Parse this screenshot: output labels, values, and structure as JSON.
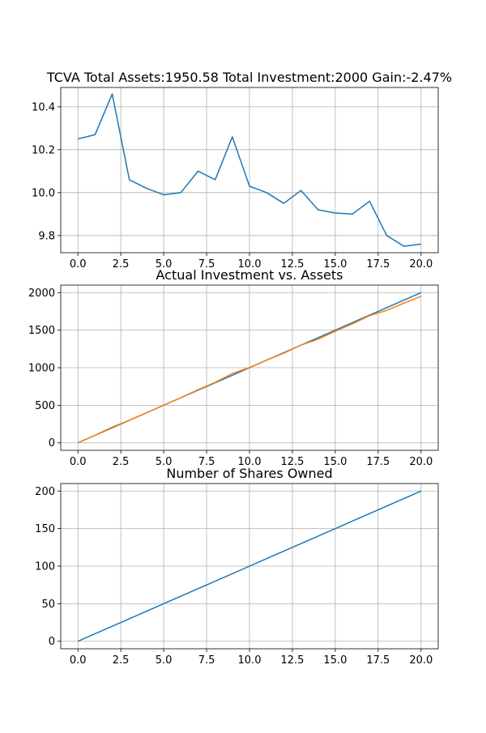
{
  "chart_data": [
    {
      "type": "line",
      "title": "TCVA Total Assets:1950.58  Total Investment:2000  Gain:-2.47%",
      "xlabel": "",
      "ylabel": "",
      "xlim": [
        -1,
        21
      ],
      "ylim": [
        9.72,
        10.49
      ],
      "grid": true,
      "x_ticks": [
        0,
        2.5,
        5,
        7.5,
        10,
        12.5,
        15,
        17.5,
        20
      ],
      "x_tick_labels": [
        "0.0",
        "2.5",
        "5.0",
        "7.5",
        "10.0",
        "12.5",
        "15.0",
        "17.5",
        "20.0"
      ],
      "y_ticks": [
        9.8,
        10.0,
        10.2,
        10.4
      ],
      "y_tick_labels": [
        "9.8",
        "10.0",
        "10.2",
        "10.4"
      ],
      "series": [
        {
          "color": "#1f77b4",
          "x": [
            0,
            1,
            2,
            3,
            4,
            5,
            6,
            7,
            8,
            9,
            10,
            11,
            12,
            13,
            14,
            15,
            16,
            17,
            18,
            19,
            20
          ],
          "y": [
            10.25,
            10.27,
            10.46,
            10.06,
            10.02,
            9.99,
            10.0,
            10.1,
            10.06,
            10.26,
            10.03,
            10.0,
            9.95,
            10.01,
            9.92,
            9.905,
            9.9,
            9.96,
            9.8,
            9.75,
            9.76
          ]
        }
      ]
    },
    {
      "type": "line",
      "title": "Actual Investment vs. Assets",
      "xlabel": "",
      "ylabel": "",
      "xlim": [
        -1,
        21
      ],
      "ylim": [
        -100,
        2100
      ],
      "grid": true,
      "x_ticks": [
        0,
        2.5,
        5,
        7.5,
        10,
        12.5,
        15,
        17.5,
        20
      ],
      "x_tick_labels": [
        "0.0",
        "2.5",
        "5.0",
        "7.5",
        "10.0",
        "12.5",
        "15.0",
        "17.5",
        "20.0"
      ],
      "y_ticks": [
        0,
        500,
        1000,
        1500,
        2000
      ],
      "y_tick_labels": [
        "0",
        "500",
        "1000",
        "1500",
        "2000"
      ],
      "series": [
        {
          "color": "#1f77b4",
          "x": [
            0,
            1,
            2,
            3,
            4,
            5,
            6,
            7,
            8,
            9,
            10,
            11,
            12,
            13,
            14,
            15,
            16,
            17,
            18,
            19,
            20
          ],
          "y": [
            0,
            100,
            200,
            300,
            400,
            500,
            600,
            700,
            800,
            900,
            1000,
            1100,
            1200,
            1300,
            1400,
            1500,
            1600,
            1700,
            1800,
            1900,
            2000
          ]
        },
        {
          "color": "#ff7f0e",
          "x": [
            0,
            1,
            2,
            3,
            4,
            5,
            6,
            7,
            8,
            9,
            10,
            11,
            12,
            13,
            14,
            15,
            16,
            17,
            18,
            19,
            20
          ],
          "y": [
            0,
            102,
            209,
            301,
            401,
            500,
            600,
            707,
            805,
            923,
            1003,
            1100,
            1194,
            1301,
            1379,
            1486,
            1584,
            1693,
            1764,
            1860,
            1950.58
          ]
        }
      ]
    },
    {
      "type": "line",
      "title": "Number of Shares Owned",
      "xlabel": "",
      "ylabel": "",
      "xlim": [
        -1,
        21
      ],
      "ylim": [
        -10,
        210
      ],
      "grid": true,
      "x_ticks": [
        0,
        2.5,
        5,
        7.5,
        10,
        12.5,
        15,
        17.5,
        20
      ],
      "x_tick_labels": [
        "0.0",
        "2.5",
        "5.0",
        "7.5",
        "10.0",
        "12.5",
        "15.0",
        "17.5",
        "20.0"
      ],
      "y_ticks": [
        0,
        50,
        100,
        150,
        200
      ],
      "y_tick_labels": [
        "0",
        "50",
        "100",
        "150",
        "200"
      ],
      "series": [
        {
          "color": "#1f77b4",
          "x": [
            0,
            1,
            2,
            3,
            4,
            5,
            6,
            7,
            8,
            9,
            10,
            11,
            12,
            13,
            14,
            15,
            16,
            17,
            18,
            19,
            20
          ],
          "y": [
            0,
            10,
            20,
            30,
            40,
            50,
            60,
            70,
            80,
            90,
            100,
            110,
            120,
            130,
            140,
            150,
            160,
            170,
            180,
            190,
            200
          ]
        }
      ]
    }
  ]
}
